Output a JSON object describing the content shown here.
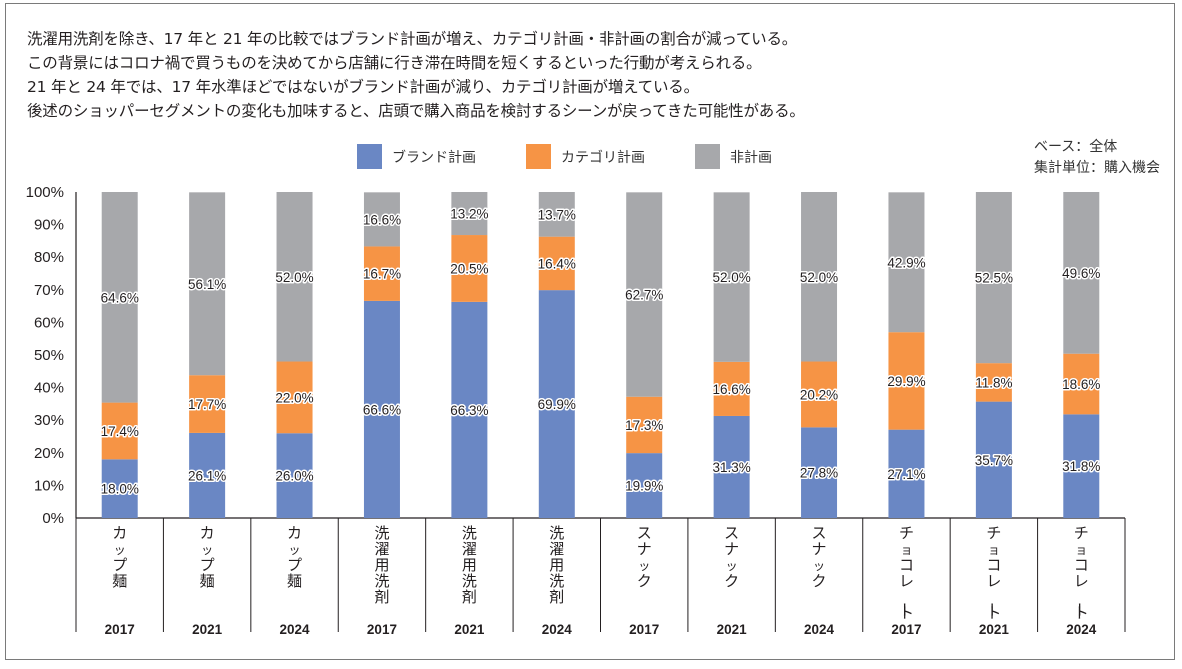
{
  "description": [
    "洗濯用洗剤を除き、17 年と 21 年の比較ではブランド計画が増え、カテゴリ計画・非計画の割合が減っている。",
    "この背景にはコロナ禍で買うものを決めてから店舗に行き滞在時間を短くするといった行動が考えられる。",
    "21 年と 24 年では、17 年水準ほどではないがブランド計画が減り、カテゴリ計画が増えている。",
    "後述のショッパーセグメントの変化も加味すると、店頭で購入商品を検討するシーンが戻ってきた可能性がある。"
  ],
  "base_note": {
    "base": "ベース：全体",
    "unit": "集計単位：購入機会"
  },
  "colors": {
    "brand": "#6a87c4",
    "category": "#f69445",
    "unplanned": "#a7a8ab"
  },
  "chart_data": {
    "type": "bar",
    "stacked": true,
    "title": "",
    "xlabel": "",
    "ylabel": "",
    "ylim": [
      0,
      100
    ],
    "yticks": [
      "0%",
      "10%",
      "20%",
      "30%",
      "40%",
      "50%",
      "60%",
      "70%",
      "80%",
      "90%",
      "100%"
    ],
    "grid": false,
    "legend_position": "top-center",
    "categories": [
      {
        "name": "カップ麺",
        "year": "2017"
      },
      {
        "name": "カップ麺",
        "year": "2021"
      },
      {
        "name": "カップ麺",
        "year": "2024"
      },
      {
        "name": "洗濯用洗剤",
        "year": "2017"
      },
      {
        "name": "洗濯用洗剤",
        "year": "2021"
      },
      {
        "name": "洗濯用洗剤",
        "year": "2024"
      },
      {
        "name": "スナック",
        "year": "2017"
      },
      {
        "name": "スナック",
        "year": "2021"
      },
      {
        "name": "スナック",
        "year": "2024"
      },
      {
        "name": "チョコレート",
        "year": "2017"
      },
      {
        "name": "チョコレート",
        "year": "2021"
      },
      {
        "name": "チョコレート",
        "year": "2024"
      }
    ],
    "series": [
      {
        "name": "ブランド計画",
        "color_key": "brand",
        "values": [
          18.0,
          26.1,
          26.0,
          66.6,
          66.3,
          69.9,
          19.9,
          31.3,
          27.8,
          27.1,
          35.7,
          31.8
        ],
        "labels": [
          "18.0%",
          "26.1%",
          "26.0%",
          "66.6%",
          "66.3%",
          "69.9%",
          "19.9%",
          "31.3%",
          "27.8%",
          "27.1%",
          "35.7%",
          "31.8%"
        ]
      },
      {
        "name": "カテゴリ計画",
        "color_key": "category",
        "values": [
          17.4,
          17.7,
          22.0,
          16.7,
          20.5,
          16.4,
          17.3,
          16.6,
          20.2,
          29.9,
          11.8,
          18.6
        ],
        "labels": [
          "17.4%",
          "17.7%",
          "22.0%",
          "16.7%",
          "20.5%",
          "16.4%",
          "17.3%",
          "16.6%",
          "20.2%",
          "29.9%",
          "11.8%",
          "18.6%"
        ]
      },
      {
        "name": "非計画",
        "color_key": "unplanned",
        "values": [
          64.6,
          56.1,
          52.0,
          16.6,
          13.2,
          13.7,
          62.7,
          52.0,
          52.0,
          42.9,
          52.5,
          49.6
        ],
        "labels": [
          "64.6%",
          "56.1%",
          "52.0%",
          "16.6%",
          "13.2%",
          "13.7%",
          "62.7%",
          "52.0%",
          "52.0%",
          "42.9%",
          "52.5%",
          "49.6%"
        ]
      }
    ]
  }
}
